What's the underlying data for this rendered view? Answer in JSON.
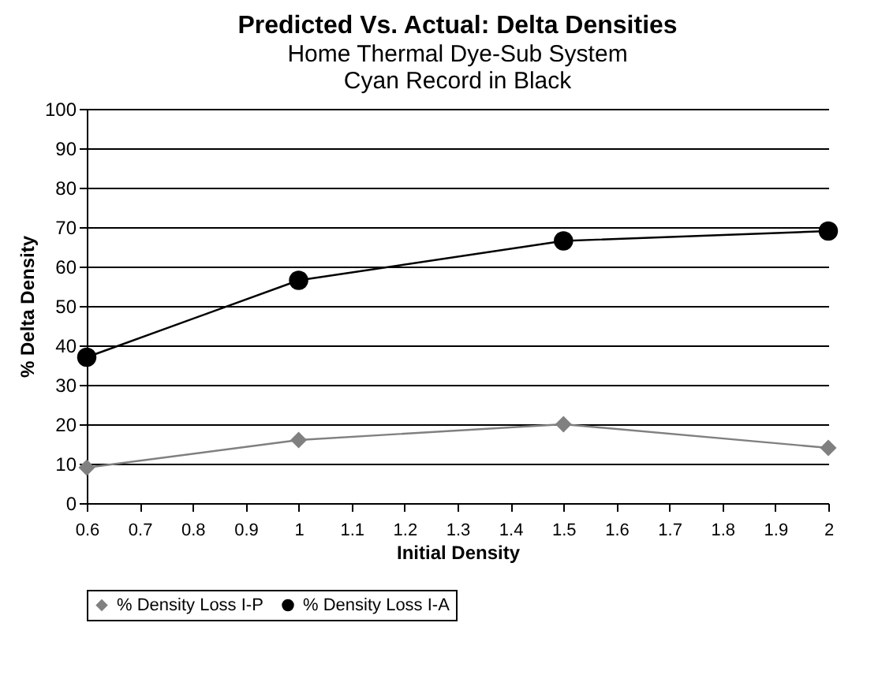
{
  "chart_data": {
    "type": "line",
    "title": "Predicted Vs. Actual: Delta Densities",
    "subtitle": "Home Thermal Dye-Sub System\nCyan Record in Black",
    "xlabel": "Initial Density",
    "ylabel": "% Delta Density",
    "x": [
      0.6,
      1,
      1.5,
      2
    ],
    "series": [
      {
        "name": "% Density Loss I-P",
        "color": "#808080",
        "marker": "diamond",
        "values": [
          9,
          16,
          20,
          14
        ]
      },
      {
        "name": "% Density Loss I-A",
        "color": "#000000",
        "marker": "circle",
        "values": [
          37,
          56.5,
          66.5,
          69
        ]
      }
    ],
    "xlim": [
      0.6,
      2
    ],
    "xticks": [
      0.6,
      0.7,
      0.8,
      0.9,
      1,
      1.1,
      1.2,
      1.3,
      1.4,
      1.5,
      1.6,
      1.7,
      1.8,
      1.9,
      2
    ],
    "ylim": [
      0,
      100
    ],
    "yticks": [
      0,
      10,
      20,
      30,
      40,
      50,
      60,
      70,
      80,
      90,
      100
    ],
    "grid": "y",
    "legend": "bottom"
  }
}
